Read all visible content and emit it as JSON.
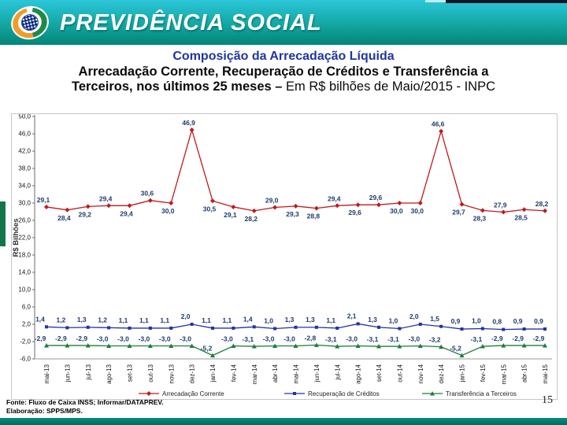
{
  "banner": {
    "brand": "PREVIDÊNCIA SOCIAL"
  },
  "title": {
    "line1": "Composição da Arrecadação Líquida",
    "line2": "Arrecadação Corrente, Recuperação de Créditos e Transferência a",
    "line3_bold": "Terceiros, nos últimos 25 meses – ",
    "line3_regular": "Em R$ bilhões de Maio/2015 - INPC"
  },
  "chart_data": {
    "type": "line",
    "title": "",
    "xlabel": "",
    "ylabel": "R$ Bilhões",
    "ylim": [
      -6,
      50
    ],
    "ytick_step": 4,
    "grid": false,
    "legend_position": "bottom",
    "categories": [
      "mai-13",
      "jun-13",
      "jul-13",
      "ago-13",
      "set-13",
      "out-13",
      "nov-13",
      "dez-13",
      "jan-14",
      "fev-14",
      "mar-14",
      "abr-14",
      "mai-14",
      "jun-14",
      "jul-14",
      "ago-14",
      "set-14",
      "out-14",
      "nov-14",
      "dez-14",
      "jan-15",
      "fev-15",
      "mar-15",
      "abr-15",
      "mai-15"
    ],
    "series": [
      {
        "name": "Arrecadação Corrente",
        "color": "#c0191c",
        "marker": "diamond",
        "values": [
          29.1,
          28.4,
          29.2,
          29.4,
          29.4,
          30.6,
          30.0,
          46.9,
          30.5,
          29.1,
          28.2,
          29.0,
          29.3,
          28.8,
          29.4,
          29.6,
          29.6,
          30.0,
          30.0,
          46.6,
          29.7,
          28.3,
          27.9,
          28.5,
          28.2
        ]
      },
      {
        "name": "Recuperação de Créditos",
        "color": "#2433a0",
        "marker": "square",
        "values": [
          1.4,
          1.2,
          1.3,
          1.2,
          1.1,
          1.1,
          1.1,
          2.0,
          1.1,
          1.1,
          1.4,
          1.0,
          1.3,
          1.3,
          1.1,
          2.1,
          1.3,
          1.0,
          2.0,
          1.5,
          0.9,
          1.0,
          0.8,
          0.9,
          0.9
        ]
      },
      {
        "name": "Transferência a Terceiros",
        "color": "#1e7d3c",
        "marker": "triangle",
        "values": [
          -2.9,
          -2.9,
          -2.9,
          -3.0,
          -3.0,
          -3.0,
          -3.0,
          -3.0,
          -5.2,
          -3.0,
          -3.1,
          -3.0,
          -3.0,
          -2.8,
          -3.1,
          -3.0,
          -3.1,
          -3.1,
          -3.0,
          -3.2,
          -5.2,
          -3.1,
          -2.9,
          -2.9,
          -2.9
        ]
      }
    ]
  },
  "footer": {
    "source_line1": "Fonte: Fluxo de Caixa INSS; Informar/DATAPREV.",
    "source_line2": "Elaboração: SPPS/MPS.",
    "page_number": "15"
  },
  "colors": {
    "banner_top": "#2bc6d9",
    "banner_bottom": "#028577",
    "title_blue": "#2036a0",
    "data_label": "#1d3a6e",
    "bottom_bar": "#00685e",
    "left_accent": "#12754a"
  }
}
